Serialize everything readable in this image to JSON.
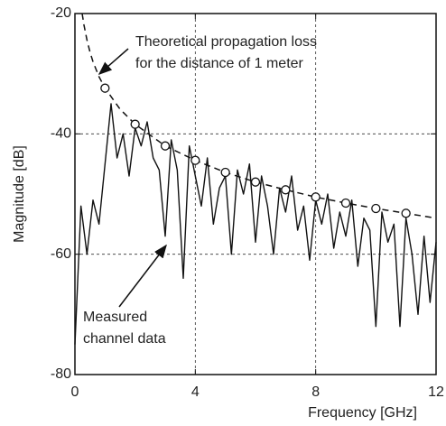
{
  "chart_data": {
    "type": "line",
    "x_label": "Frequency [GHz]",
    "y_label": "Magnitude [dB]",
    "xlim": [
      0,
      12
    ],
    "ylim": [
      -80,
      -20
    ],
    "xticks": [
      0,
      4,
      8,
      12
    ],
    "yticks": [
      -80,
      -60,
      -40,
      -20
    ],
    "grid": true,
    "annotations": [
      {
        "lines": [
          "Theoretical propagation loss",
          "for the distance of 1 meter"
        ]
      },
      {
        "lines": [
          "Measured",
          "channel data"
        ]
      }
    ],
    "series": [
      {
        "color": "#111111",
        "dashed": false,
        "marker": "none",
        "x": [
          0,
          0.2,
          0.4,
          0.6,
          0.8,
          1.0,
          1.2,
          1.4,
          1.6,
          1.8,
          2.0,
          2.2,
          2.4,
          2.6,
          2.8,
          3.0,
          3.2,
          3.4,
          3.6,
          3.8,
          4.0,
          4.2,
          4.4,
          4.6,
          4.8,
          5.0,
          5.2,
          5.4,
          5.6,
          5.8,
          6.0,
          6.2,
          6.4,
          6.6,
          6.8,
          7.0,
          7.2,
          7.4,
          7.6,
          7.8,
          8.0,
          8.2,
          8.4,
          8.6,
          8.8,
          9.0,
          9.2,
          9.4,
          9.6,
          9.8,
          10.0,
          10.2,
          10.4,
          10.6,
          10.8,
          11.0,
          11.2,
          11.4,
          11.6,
          11.8,
          12.0
        ],
        "values": [
          -75,
          -52,
          -60,
          -51,
          -55,
          -45,
          -35,
          -44,
          -40,
          -47,
          -39,
          -42,
          -38,
          -44,
          -46,
          -57,
          -41,
          -46,
          -64,
          -42,
          -47,
          -52,
          -44,
          -55,
          -49,
          -47,
          -60,
          -46,
          -50,
          -45,
          -58,
          -47,
          -52,
          -60,
          -49,
          -53,
          -47,
          -56,
          -52,
          -61,
          -51,
          -55,
          -50,
          -59,
          -53,
          -57,
          -51,
          -62,
          -54,
          -56,
          -72,
          -53,
          -58,
          -55,
          -72,
          -54,
          -60,
          -70,
          -57,
          -68,
          -58
        ]
      },
      {
        "color": "#111111",
        "dashed": true,
        "marker": "none",
        "x": [
          0.24,
          0.3,
          0.4,
          0.5,
          0.6,
          0.8,
          1,
          1.5,
          2,
          3,
          4,
          5,
          6,
          7,
          8,
          9,
          10,
          11,
          12
        ],
        "values": [
          -20.0,
          -21.9,
          -24.4,
          -26.4,
          -28.0,
          -30.5,
          -32.4,
          -35.9,
          -38.4,
          -42.0,
          -44.4,
          -46.4,
          -48.0,
          -49.3,
          -50.5,
          -51.5,
          -52.4,
          -53.2,
          -54.0
        ]
      },
      {
        "color": "#111111",
        "dashed": false,
        "marker": "circle",
        "x": [
          1,
          2,
          3,
          4,
          5,
          6,
          7,
          8,
          9,
          10,
          11
        ],
        "values": [
          -32.4,
          -38.4,
          -42.0,
          -44.4,
          -46.4,
          -48.0,
          -49.3,
          -50.5,
          -51.5,
          -52.4,
          -53.2
        ]
      }
    ]
  }
}
